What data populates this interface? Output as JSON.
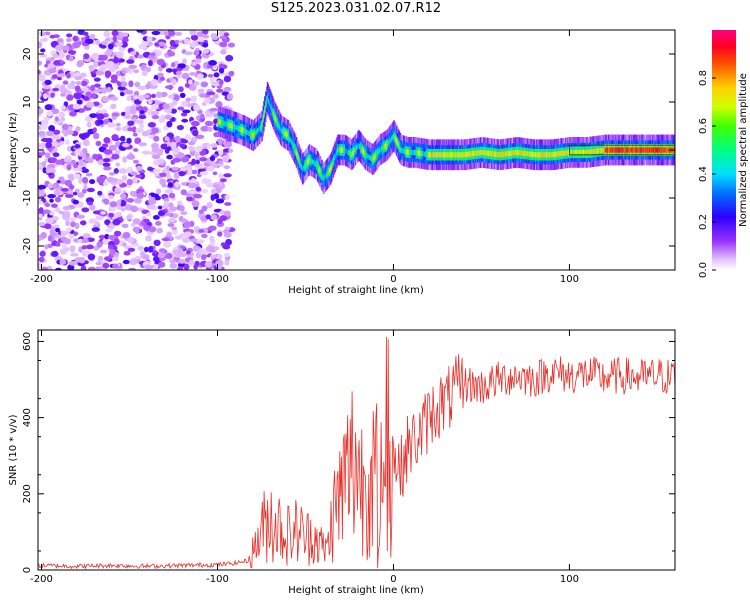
{
  "title": "S125.2023.031.02.07.R12",
  "chart_data": [
    {
      "type": "heatmap",
      "xlabel": "Height of straight line (km)",
      "ylabel": "Frequency (Hz)",
      "xlim": [
        -202,
        160
      ],
      "ylim": [
        -25,
        25
      ],
      "xticks": [
        -200,
        -100,
        0,
        100
      ],
      "yticks": [
        -20,
        -10,
        0,
        10,
        20
      ],
      "colorbar": {
        "label": "Normalized spectral amplitude",
        "range": [
          0,
          1
        ],
        "ticks": [
          "0.0",
          "0.2",
          "0.4",
          "0.6",
          "0.8"
        ]
      },
      "ridge": {
        "x": [
          -100,
          -92,
          -85,
          -80,
          -75,
          -72,
          -68,
          -64,
          -60,
          -56,
          -52,
          -48,
          -44,
          -40,
          -36,
          -32,
          -28,
          -24,
          -20,
          -16,
          -12,
          -8,
          -4,
          0,
          4,
          8,
          12,
          20,
          30,
          40,
          50,
          60,
          70,
          80,
          90,
          100,
          110,
          120,
          140,
          160
        ],
        "y": [
          6,
          5,
          4,
          3,
          5,
          11,
          7,
          4,
          3,
          0,
          -4,
          -2,
          -3,
          -6,
          -4,
          0,
          0,
          -1,
          1,
          -1,
          -2,
          0,
          1,
          3,
          0,
          -0.5,
          -0.5,
          -1,
          -1,
          -1,
          -0.5,
          -1,
          -0.5,
          -1,
          -1,
          -0.5,
          -0.5,
          0,
          0,
          0
        ]
      }
    },
    {
      "type": "line",
      "xlabel": "Height of straight line (km)",
      "ylabel": "SNR (10 * v/v)",
      "xlim": [
        -202,
        160
      ],
      "ylim": [
        0,
        630
      ],
      "xticks": [
        -200,
        -100,
        0,
        100
      ],
      "yticks": [
        0,
        200,
        400,
        600
      ],
      "series": [
        {
          "color": "#e8302a",
          "x": [
            -202,
            -180,
            -160,
            -140,
            -120,
            -100,
            -90,
            -82,
            -78,
            -74,
            -70,
            -66,
            -62,
            -58,
            -54,
            -50,
            -46,
            -42,
            -38,
            -34,
            -30,
            -26,
            -22,
            -18,
            -14,
            -10,
            -6,
            -4,
            -2,
            0,
            4,
            8,
            12,
            16,
            20,
            25,
            30,
            35,
            40,
            50,
            60,
            70,
            80,
            90,
            100,
            110,
            120,
            130,
            140,
            150,
            160
          ],
          "values": [
            12,
            10,
            12,
            10,
            12,
            14,
            18,
            25,
            70,
            110,
            140,
            120,
            100,
            90,
            110,
            80,
            100,
            70,
            50,
            150,
            200,
            250,
            300,
            230,
            260,
            260,
            300,
            250,
            280,
            300,
            260,
            320,
            340,
            360,
            400,
            430,
            440,
            470,
            490,
            480,
            500,
            510,
            500,
            520,
            510,
            515,
            505,
            510,
            505,
            510,
            505
          ]
        }
      ]
    }
  ]
}
